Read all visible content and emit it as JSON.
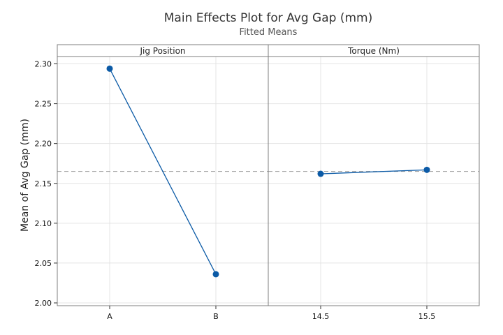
{
  "chart_data": {
    "type": "line",
    "title": "Main Effects Plot for Avg Gap (mm)",
    "subtitle": "Fitted Means",
    "ylabel": "Mean of Avg Gap (mm)",
    "ylim": [
      2.0,
      2.3
    ],
    "yticks": [
      "2.00",
      "2.05",
      "2.10",
      "2.15",
      "2.20",
      "2.25",
      "2.30"
    ],
    "reference_line": 2.165,
    "grid": true,
    "line_color": "#0b5aa6",
    "panels": [
      {
        "name": "Jig Position",
        "categories": [
          "A",
          "B"
        ],
        "values": [
          2.294,
          2.036
        ]
      },
      {
        "name": "Torque (Nm)",
        "categories": [
          "14.5",
          "15.5"
        ],
        "values": [
          2.162,
          2.167
        ]
      }
    ]
  }
}
